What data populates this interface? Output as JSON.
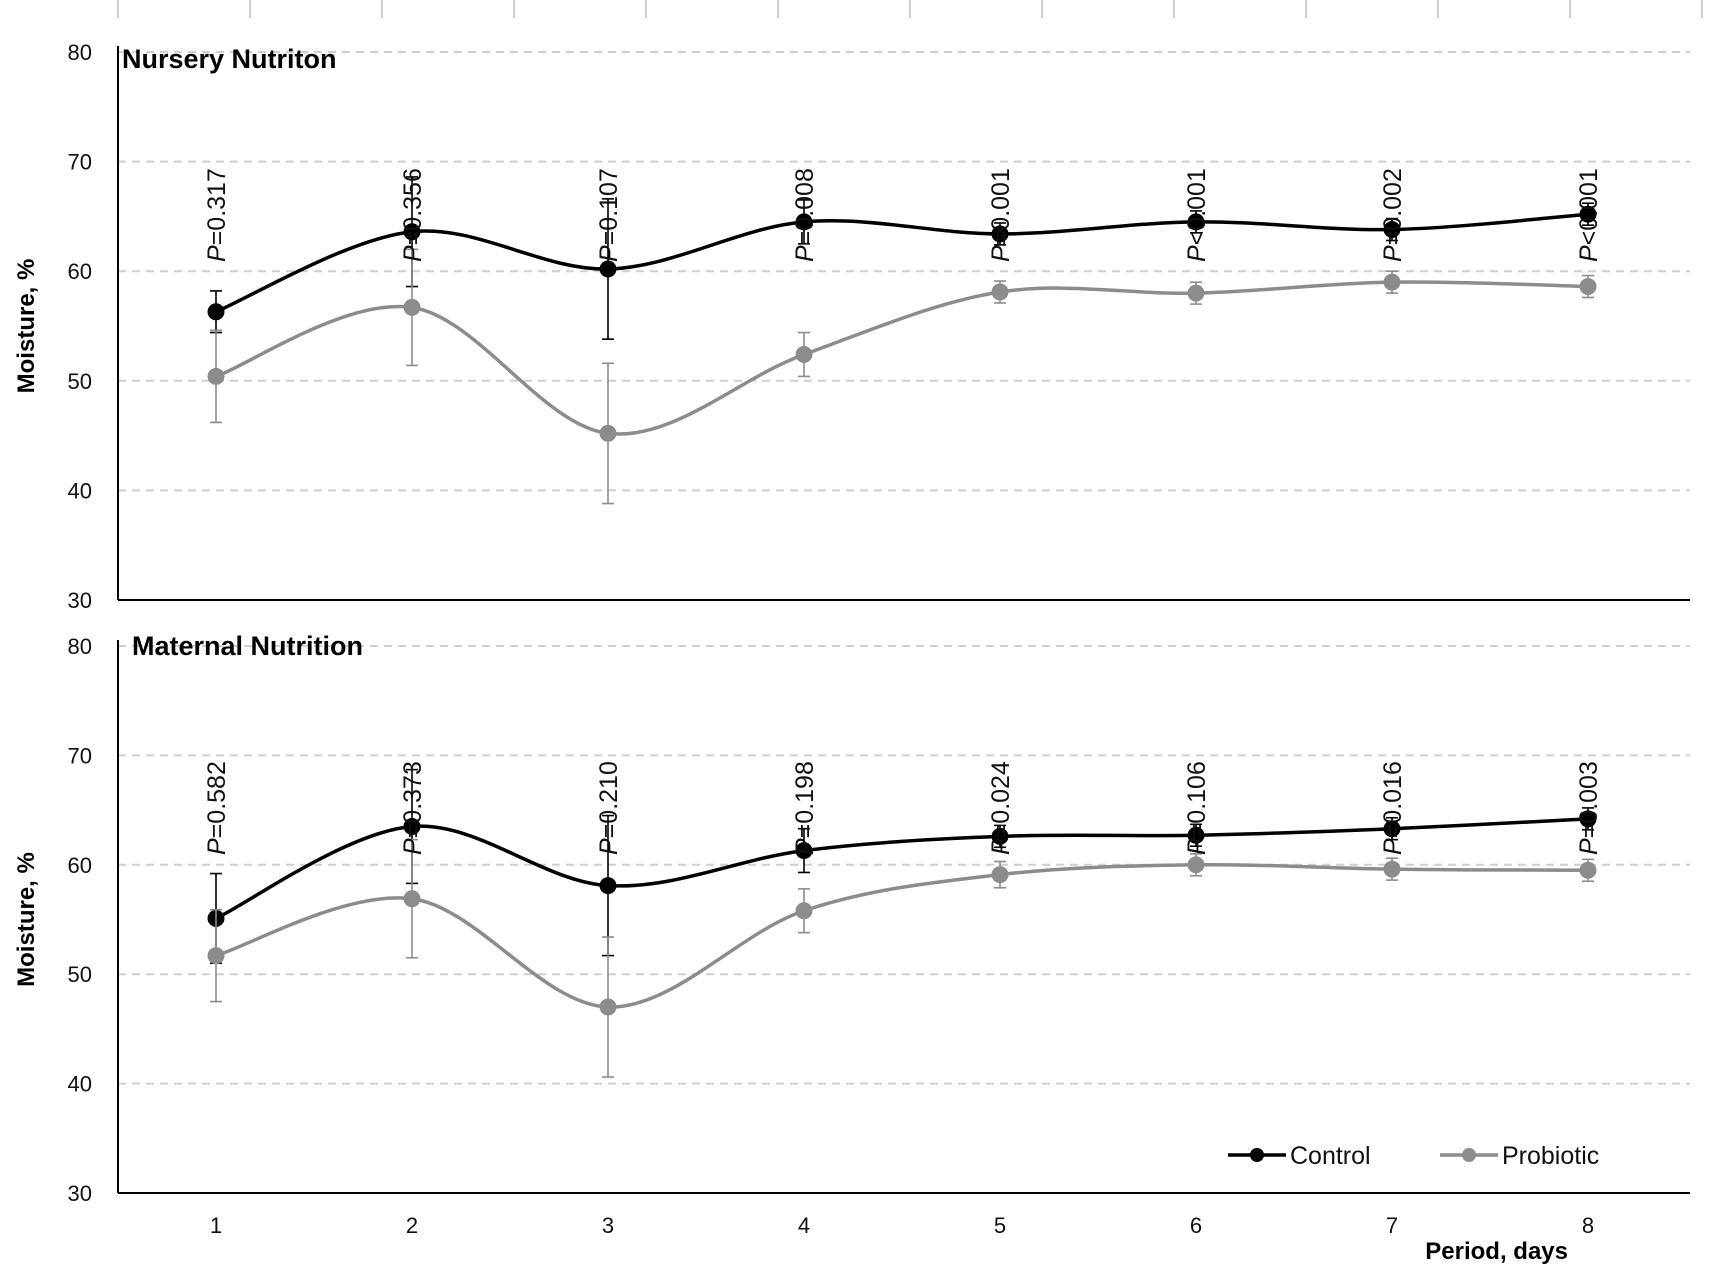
{
  "chart_data": [
    {
      "type": "line",
      "title": "Nursery Nutriton",
      "xlabel": "",
      "ylabel": "Moisture, %",
      "ylim": [
        30,
        80
      ],
      "yticks": [
        30,
        40,
        50,
        60,
        70,
        80
      ],
      "categories": [
        "1",
        "2",
        "3",
        "4",
        "5",
        "6",
        "7",
        "8"
      ],
      "grid": "horizontal dashed",
      "p_prefix": "P",
      "p_values": [
        "=0.317",
        "=0.356",
        "=0.107",
        "=0.008",
        "=0.001",
        "<0.001",
        "=0.002",
        "<0.001"
      ],
      "series": [
        {
          "name": "Control",
          "color": "#000000",
          "values": [
            56.3,
            63.6,
            60.2,
            64.5,
            63.4,
            64.5,
            63.8,
            65.2
          ],
          "errors": [
            1.9,
            5.0,
            6.4,
            2.0,
            1.0,
            1.0,
            1.0,
            1.0
          ]
        },
        {
          "name": "Probiotic",
          "color": "#8c8c8c",
          "values": [
            50.4,
            56.7,
            45.2,
            52.4,
            58.1,
            58.0,
            59.0,
            58.6
          ],
          "errors": [
            4.2,
            5.3,
            6.4,
            2.0,
            1.0,
            1.0,
            1.0,
            1.0
          ]
        }
      ]
    },
    {
      "type": "line",
      "title": "Maternal Nutrition",
      "xlabel": "Period, days",
      "ylabel": "Moisture, %",
      "ylim": [
        30,
        80
      ],
      "yticks": [
        30,
        40,
        50,
        60,
        70,
        80
      ],
      "categories": [
        "1",
        "2",
        "3",
        "4",
        "5",
        "6",
        "7",
        "8"
      ],
      "grid": "horizontal dashed",
      "p_prefix": "P",
      "p_values": [
        "=0.582",
        "=0.373",
        "=0.210",
        "=0.198",
        "=0.024",
        "=0.106",
        "=0.016",
        "=0.003"
      ],
      "series": [
        {
          "name": "Control",
          "color": "#000000",
          "values": [
            55.1,
            63.5,
            58.1,
            61.3,
            62.6,
            62.7,
            63.3,
            64.2
          ],
          "errors": [
            4.1,
            5.2,
            6.4,
            2.0,
            1.0,
            1.0,
            1.0,
            1.0
          ]
        },
        {
          "name": "Probiotic",
          "color": "#8c8c8c",
          "values": [
            51.7,
            56.9,
            47.0,
            55.8,
            59.1,
            60.0,
            59.6,
            59.5
          ],
          "errors": [
            4.2,
            5.4,
            6.4,
            2.0,
            1.2,
            1.0,
            1.0,
            1.0
          ]
        }
      ]
    }
  ],
  "legend": {
    "position": "bottom-right",
    "items": [
      {
        "label": "Control",
        "color": "#000000"
      },
      {
        "label": "Probiotic",
        "color": "#8c8c8c"
      }
    ]
  }
}
